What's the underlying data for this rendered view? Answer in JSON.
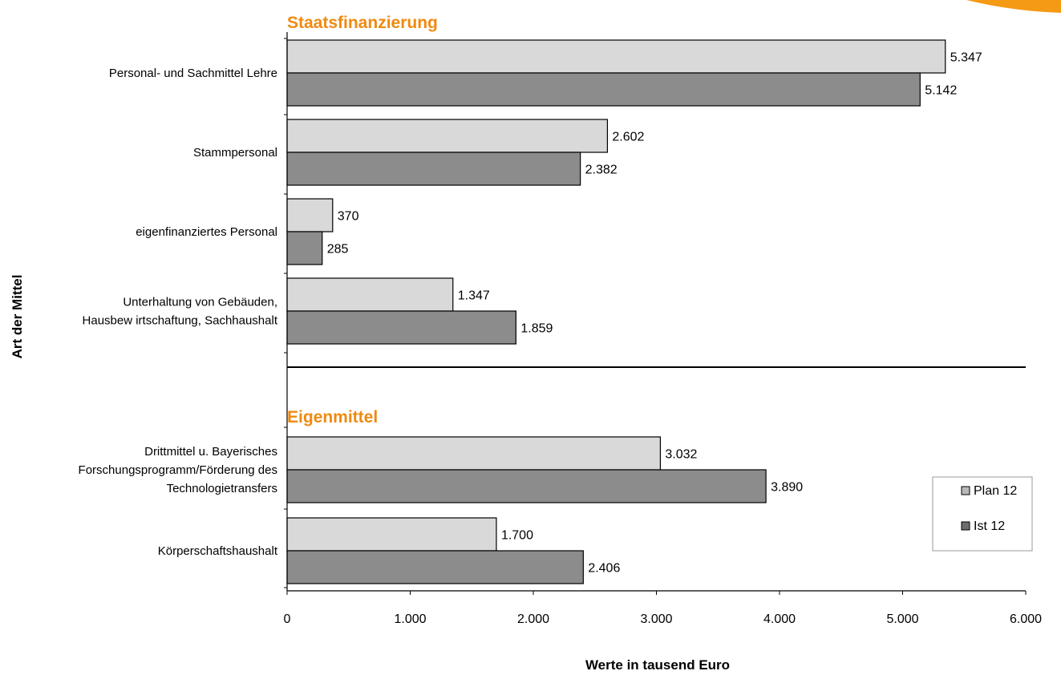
{
  "chart_data": {
    "type": "bar",
    "orientation": "horizontal",
    "xlabel": "Werte in tausend Euro",
    "ylabel": "Art der Mittel",
    "xlim": [
      0,
      6000
    ],
    "xticks": [
      0,
      1000,
      2000,
      3000,
      4000,
      5000,
      6000
    ],
    "xtick_labels": [
      "0",
      "1.000",
      "2.000",
      "3.000",
      "4.000",
      "5.000",
      "6.000"
    ],
    "legend_position": "right",
    "grid": false,
    "series": [
      {
        "name": "Plan 12",
        "color": "#d9d9d9"
      },
      {
        "name": "Ist 12",
        "color": "#8c8c8c"
      }
    ],
    "groups": [
      {
        "title": "Staatsfinanzierung",
        "categories": [
          {
            "label": [
              "Personal- und Sachmittel Lehre"
            ],
            "values": [
              5347,
              5142
            ],
            "value_labels": [
              "5.347",
              "5.142"
            ]
          },
          {
            "label": [
              "Stammpersonal"
            ],
            "values": [
              2602,
              2382
            ],
            "value_labels": [
              "2.602",
              "2.382"
            ]
          },
          {
            "label": [
              "eigenfinanziertes Personal"
            ],
            "values": [
              370,
              285
            ],
            "value_labels": [
              "370",
              "285"
            ]
          },
          {
            "label": [
              "Unterhaltung von Gebäuden,",
              "Hausbew irtschaftung, Sachhaushalt"
            ],
            "values": [
              1347,
              1859
            ],
            "value_labels": [
              "1.347",
              "1.859"
            ]
          }
        ]
      },
      {
        "title": "Eigenmittel",
        "categories": [
          {
            "label": [
              "Drittmittel u. Bayerisches",
              "Forschungsprogramm/Förderung des",
              "Technologietransfers"
            ],
            "values": [
              3032,
              3890
            ],
            "value_labels": [
              "3.032",
              "3.890"
            ]
          },
          {
            "label": [
              "Körperschaftshaushalt"
            ],
            "values": [
              1700,
              2406
            ],
            "value_labels": [
              "1.700",
              "2.406"
            ]
          }
        ]
      }
    ],
    "colors": {
      "group_title": "#ef8a10",
      "accent_swoosh": "#f59a14",
      "bar_stroke": "#000000"
    }
  }
}
